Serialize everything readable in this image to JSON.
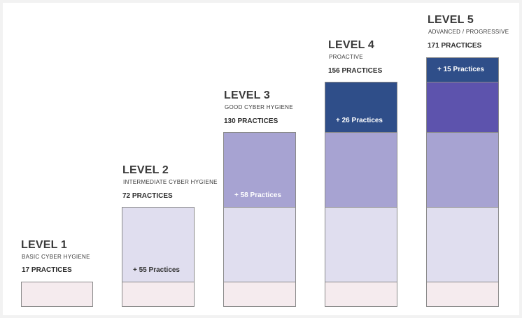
{
  "levels": [
    {
      "title": "LEVEL 1",
      "subtitle": "BASIC CYBER HYGIENE",
      "count": "17 PRACTICES",
      "added_label": ""
    },
    {
      "title": "LEVEL 2",
      "subtitle": "INTERMEDIATE CYBER HYGIENE",
      "count": "72 PRACTICES",
      "added_label": "+ 55 Practices"
    },
    {
      "title": "LEVEL 3",
      "subtitle": "GOOD CYBER HYGIENE",
      "count": "130 PRACTICES",
      "added_label": "+ 58 Practices"
    },
    {
      "title": "LEVEL 4",
      "subtitle": "PROACTIVE",
      "count": "156 PRACTICES",
      "added_label": "+ 26 Practices"
    },
    {
      "title": "LEVEL 5",
      "subtitle": "ADVANCED / PROGRESSIVE",
      "count": "171 PRACTICES",
      "added_label": "+ 15 Practices"
    }
  ],
  "colors": {
    "tier1": "#f5ebee",
    "tier2": "#e0deef",
    "tier3": "#a7a3d2",
    "tier4": "#5d53ad",
    "tier5": "#2f4e89",
    "label_dark": "#333333",
    "label_light": "#ffffff"
  }
}
